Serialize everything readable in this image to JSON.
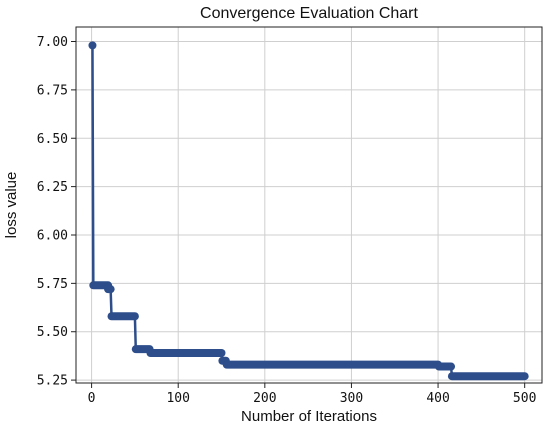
{
  "chart_data": {
    "type": "line",
    "title": "Convergence Evaluation Chart",
    "xlabel": "Number of Iterations",
    "ylabel": "loss value",
    "xlim": [
      -18,
      520
    ],
    "ylim": [
      5.235,
      7.075
    ],
    "grid": true,
    "x_ticks": [
      0,
      100,
      200,
      300,
      400,
      500
    ],
    "x_tick_labels": [
      "0",
      "100",
      "200",
      "300",
      "400",
      "500"
    ],
    "y_ticks": [
      5.25,
      5.5,
      5.75,
      6.0,
      6.25,
      6.5,
      6.75,
      7.0
    ],
    "y_tick_labels": [
      "5.25",
      "5.50",
      "5.75",
      "6.00",
      "6.25",
      "6.50",
      "6.75",
      "7.00"
    ],
    "line_color": "#2d4e8b",
    "marker": "circle",
    "segments": [
      {
        "x_start": 1,
        "x_end": 1,
        "value": 6.98
      },
      {
        "x_start": 2,
        "x_end": 19,
        "value": 5.74
      },
      {
        "x_start": 19,
        "x_end": 22,
        "value": 5.72
      },
      {
        "x_start": 23,
        "x_end": 50,
        "value": 5.58
      },
      {
        "x_start": 51,
        "x_end": 67,
        "value": 5.41
      },
      {
        "x_start": 68,
        "x_end": 150,
        "value": 5.39
      },
      {
        "x_start": 151,
        "x_end": 155,
        "value": 5.35
      },
      {
        "x_start": 156,
        "x_end": 400,
        "value": 5.33
      },
      {
        "x_start": 401,
        "x_end": 415,
        "value": 5.32
      },
      {
        "x_start": 416,
        "x_end": 500,
        "value": 5.27
      }
    ]
  }
}
